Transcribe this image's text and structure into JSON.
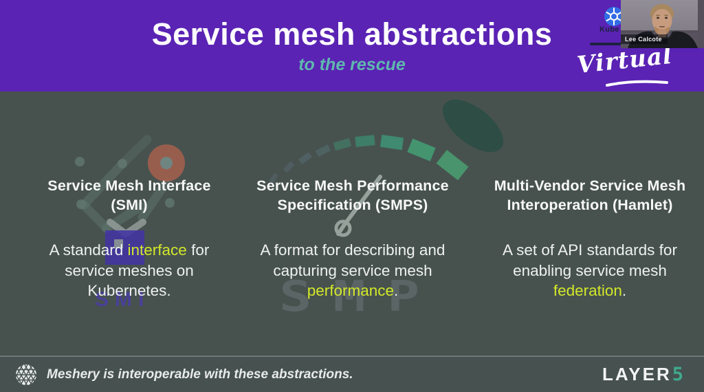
{
  "slide": {
    "title": "Service mesh abstractions",
    "subtitle": "to the rescue"
  },
  "event_badge": {
    "kubecon_partial_label": "Kube",
    "virtual_label": "Virtual"
  },
  "webcam": {
    "speaker_name": "Lee Calcote"
  },
  "columns": [
    {
      "heading_lines": [
        "Service Mesh Interface",
        "(SMI)"
      ],
      "body_segments": [
        {
          "text": "A standard "
        },
        {
          "text": "interface",
          "highlight": true
        },
        {
          "text": " for"
        },
        {
          "br": true
        },
        {
          "text": "service meshes on"
        },
        {
          "br": true
        },
        {
          "text": "Kubernetes."
        }
      ]
    },
    {
      "heading_lines": [
        "Service Mesh Performance",
        "Specification (SMPS)"
      ],
      "body_segments": [
        {
          "text": "A format for describing and"
        },
        {
          "br": true
        },
        {
          "text": "capturing service mesh"
        },
        {
          "br": true
        },
        {
          "text": "performance",
          "highlight": true
        },
        {
          "text": "."
        }
      ]
    },
    {
      "heading_lines": [
        "Multi-Vendor Service Mesh",
        "Interoperation (Hamlet)"
      ],
      "body_segments": [
        {
          "text": "A set of API standards for"
        },
        {
          "br": true
        },
        {
          "text": "enabling service mesh"
        },
        {
          "br": true
        },
        {
          "text": "federation",
          "highlight": true
        },
        {
          "text": "."
        }
      ]
    }
  ],
  "watermarks": {
    "smi_label": "SMI",
    "smp_label": "SMP"
  },
  "footer": {
    "caption": "Meshery is interoperable with these abstractions.",
    "brand_text": "LAYER",
    "brand_accent": "5"
  },
  "colors": {
    "header_purple": "#5a23b4",
    "subtitle_teal": "#5fb8ae",
    "highlight_yellow": "#d3e829",
    "background_slate": "#47524f",
    "brand_green": "#3fa98c",
    "kubernetes_blue": "#326ce5"
  }
}
